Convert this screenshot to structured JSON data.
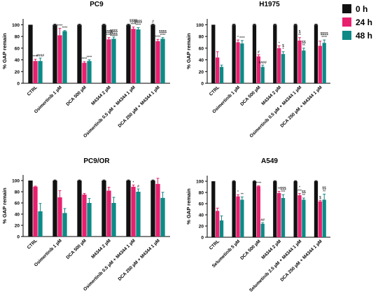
{
  "legend": [
    {
      "label": "0 h",
      "color": "#111111"
    },
    {
      "label": "24 h",
      "color": "#e8206e"
    },
    {
      "label": "48 h",
      "color": "#0d8a86"
    }
  ],
  "chart_data": [
    {
      "type": "bar",
      "title": "PC9",
      "ylabel": "% GAP remain",
      "ylim": [
        0,
        110
      ],
      "yticks": [
        0,
        20,
        40,
        60,
        80,
        100
      ],
      "categories": [
        "CTRL",
        "Osimertinib 1 µM",
        "DCA 500 µM",
        "M4344 2 µM",
        "Osimertinib 0.5 µM + M4344 1 µM",
        "DCA 250 µM + M4344 1 µM"
      ],
      "series": [
        {
          "name": "0 h",
          "values": [
            100,
            100,
            100,
            100,
            100,
            100
          ],
          "errors": [
            0,
            1,
            1,
            1,
            1,
            1
          ]
        },
        {
          "name": "24 h",
          "values": [
            38,
            82,
            35,
            75,
            93,
            72
          ],
          "errors": [
            3,
            12,
            2,
            3,
            3,
            3
          ]
        },
        {
          "name": "48 h",
          "values": [
            38,
            89,
            38,
            76,
            92,
            76
          ],
          "errors": [
            5,
            1,
            2,
            3,
            3,
            2
          ]
        }
      ],
      "annotations": [
        [
          "",
          "****",
          "####"
        ],
        [
          "",
          "****",
          "****"
        ],
        [
          "",
          "****",
          "****"
        ],
        [
          "",
          "$$$$\n****",
          "$$$$\n$$$$"
        ],
        [
          "",
          "$$$$\n****",
          "$$$$\n****"
        ],
        [
          "#",
          "****",
          "$$$$\n****"
        ]
      ]
    },
    {
      "type": "bar",
      "title": "H1975",
      "ylabel": "% GAP remain",
      "ylim": [
        0,
        110
      ],
      "yticks": [
        0,
        20,
        40,
        60,
        80,
        100
      ],
      "categories": [
        "CTRL",
        "Osimertinib 1 µM",
        "DCA 500 µM",
        "M4344 2 µM",
        "Osimertinib 0.5 µM + M4344 1 µM",
        "DCA 250 µM + M4344 1 µM"
      ],
      "series": [
        {
          "name": "0 h",
          "values": [
            100,
            100,
            100,
            100,
            100,
            100
          ],
          "errors": [
            0,
            1,
            1,
            1,
            1,
            1
          ]
        },
        {
          "name": "24 h",
          "values": [
            44,
            70,
            46,
            60,
            73,
            64
          ],
          "errors": [
            10,
            4,
            3,
            4,
            5,
            8
          ]
        },
        {
          "name": "48 h",
          "values": [
            28,
            68,
            28,
            50,
            56,
            69
          ],
          "errors": [
            3,
            5,
            3,
            4,
            4,
            5
          ]
        }
      ],
      "annotations": [
        [
          "",
          "",
          ""
        ],
        [
          "",
          "*",
          "****"
        ],
        [
          "",
          "#",
          "####"
        ],
        [
          "",
          "*",
          "$\n*"
        ],
        [
          "",
          "$\n**",
          "$$\n**"
        ],
        [
          "",
          "",
          "$$$$\n****"
        ]
      ]
    },
    {
      "type": "bar",
      "title": "PC9/OR",
      "ylabel": "% GAP remain",
      "ylim": [
        0,
        110
      ],
      "yticks": [
        0,
        20,
        40,
        60,
        80,
        100
      ],
      "categories": [
        "CTRL",
        "Osimertinib 1 µM",
        "DCA 500 µM",
        "M4344 2 µM",
        "Osimertinib 0.5 µM + M4344 1 µM",
        "DCA 250 µM + M4344 1 µM"
      ],
      "series": [
        {
          "name": "0 h",
          "values": [
            100,
            100,
            100,
            100,
            100,
            100
          ],
          "errors": [
            0,
            1,
            1,
            1,
            1,
            1
          ]
        },
        {
          "name": "24 h",
          "values": [
            89,
            70,
            75,
            82,
            89,
            94
          ],
          "errors": [
            1,
            12,
            2,
            6,
            3,
            10
          ]
        },
        {
          "name": "48 h",
          "values": [
            45,
            42,
            60,
            60,
            80,
            69
          ],
          "errors": [
            14,
            8,
            8,
            10,
            5,
            10
          ]
        }
      ],
      "annotations": [
        [
          "",
          "",
          ""
        ],
        [
          "",
          "",
          ""
        ],
        [
          "",
          "",
          ""
        ],
        [
          "",
          "",
          ""
        ],
        [
          "",
          "*",
          "#"
        ],
        [
          "",
          "",
          ""
        ]
      ]
    },
    {
      "type": "bar",
      "title": "A549",
      "ylabel": "% GAP remain",
      "ylim": [
        0,
        110
      ],
      "yticks": [
        0,
        20,
        40,
        60,
        80,
        100
      ],
      "categories": [
        "CTRL",
        "Selumetinib 5 µM",
        "DCA 500 µM",
        "M4344 2 µM",
        "Selumetinib 2.5 µM + M4344 1 µM",
        "DCA 250 µM + M4344 1 µM"
      ],
      "series": [
        {
          "name": "0 h",
          "values": [
            100,
            100,
            100,
            100,
            100,
            100
          ],
          "errors": [
            0,
            1,
            1,
            1,
            1,
            1
          ]
        },
        {
          "name": "24 h",
          "values": [
            47,
            73,
            91,
            79,
            75,
            64
          ],
          "errors": [
            5,
            3,
            1,
            3,
            3,
            2
          ]
        },
        {
          "name": "48 h",
          "values": [
            30,
            67,
            24,
            70,
            67,
            67
          ],
          "errors": [
            8,
            5,
            2,
            6,
            3,
            10
          ]
        }
      ],
      "annotations": [
        [
          "",
          "",
          ""
        ],
        [
          "",
          "*",
          "**"
        ],
        [
          "",
          "****",
          "##"
        ],
        [
          "",
          "**",
          "$$$\n***"
        ],
        [
          "",
          "*\n***",
          "$$\n**"
        ],
        [
          "",
          "$",
          "$$\n**"
        ]
      ]
    }
  ]
}
